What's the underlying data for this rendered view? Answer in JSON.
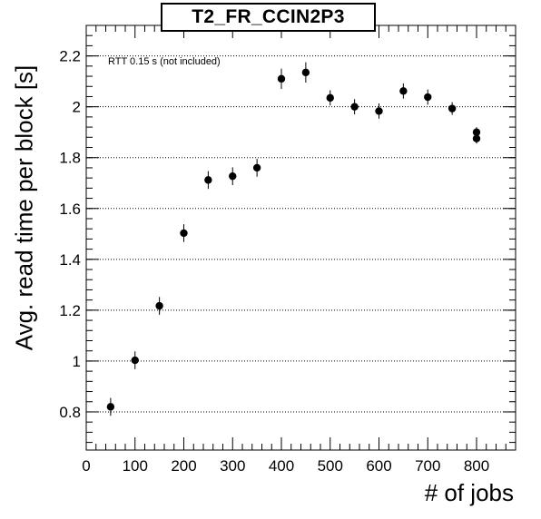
{
  "chart_data": {
    "type": "scatter",
    "title": "T2_FR_CCIN2P3",
    "xlabel": "# of jobs",
    "ylabel": "Avg. read time per block [s]",
    "annotation": "RTT 0.15 s (not included)",
    "xlim": [
      0,
      880
    ],
    "ylim": [
      0.65,
      2.32
    ],
    "xticks": [
      0,
      100,
      200,
      300,
      400,
      500,
      600,
      700,
      800
    ],
    "yticks": [
      0.8,
      1.0,
      1.2,
      1.4,
      1.6,
      1.8,
      2.0,
      2.2
    ],
    "ytick_labels": [
      "0.8",
      "1",
      "1.2",
      "1.4",
      "1.6",
      "1.8",
      "2",
      "2.2"
    ],
    "xtick_labels": [
      "0",
      "100",
      "200",
      "300",
      "400",
      "500",
      "600",
      "700",
      "800"
    ],
    "grid": "horizontal dotted",
    "marker_color": "#000000",
    "points": [
      {
        "x": 50,
        "y": 0.82,
        "err": 0.035
      },
      {
        "x": 100,
        "y": 1.003,
        "err": 0.035
      },
      {
        "x": 150,
        "y": 1.217,
        "err": 0.035
      },
      {
        "x": 200,
        "y": 1.503,
        "err": 0.035
      },
      {
        "x": 250,
        "y": 1.712,
        "err": 0.035
      },
      {
        "x": 300,
        "y": 1.727,
        "err": 0.035
      },
      {
        "x": 350,
        "y": 1.76,
        "err": 0.035
      },
      {
        "x": 400,
        "y": 2.11,
        "err": 0.04
      },
      {
        "x": 450,
        "y": 2.135,
        "err": 0.04
      },
      {
        "x": 500,
        "y": 2.035,
        "err": 0.03
      },
      {
        "x": 550,
        "y": 2.0,
        "err": 0.03
      },
      {
        "x": 600,
        "y": 1.983,
        "err": 0.03
      },
      {
        "x": 650,
        "y": 2.062,
        "err": 0.03
      },
      {
        "x": 700,
        "y": 2.038,
        "err": 0.03
      },
      {
        "x": 750,
        "y": 1.993,
        "err": 0.025
      },
      {
        "x": 800,
        "y": 1.9,
        "err": 0.02
      },
      {
        "x": 800,
        "y": 1.875,
        "err": 0.02
      }
    ]
  }
}
